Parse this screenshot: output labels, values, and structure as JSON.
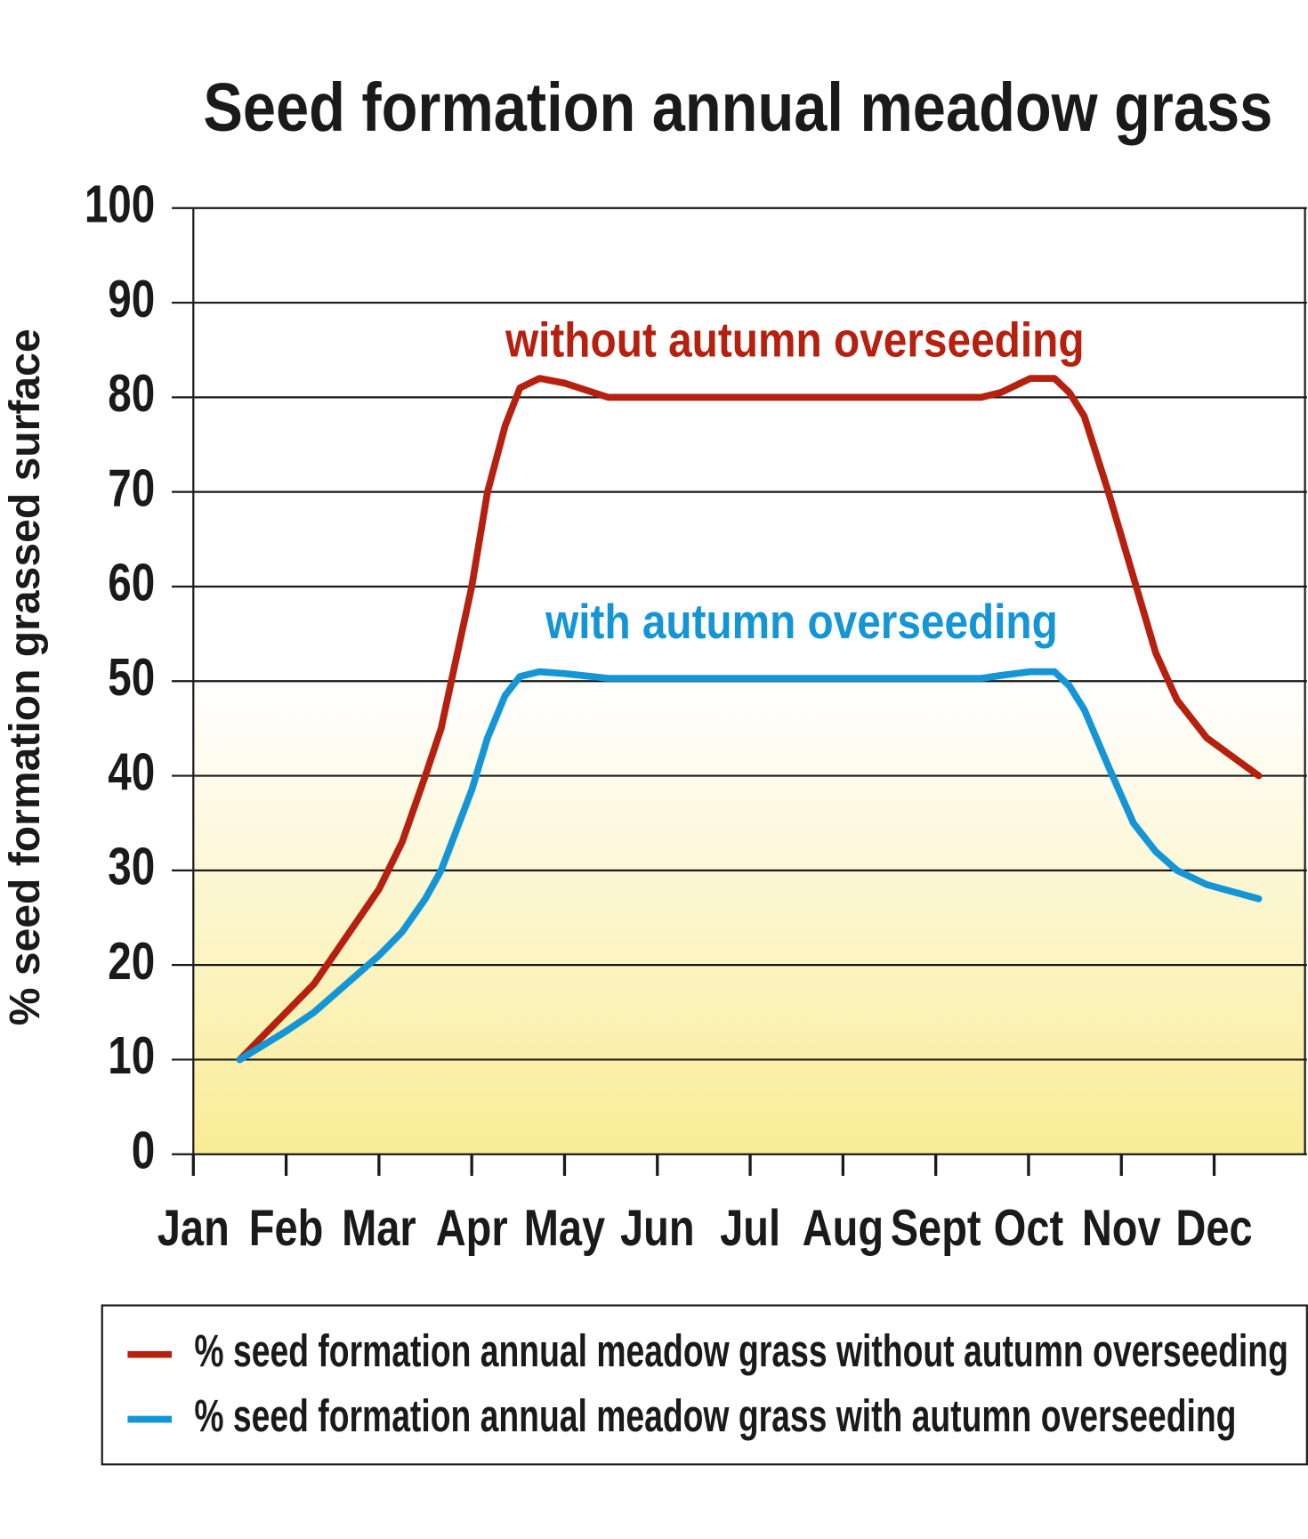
{
  "chart_data": {
    "type": "line",
    "title": "Seed formation annual meadow grass",
    "y_label": "% seed formation grassed surface",
    "annotations": [
      {
        "text": "without autumn overseeding",
        "color": "#b5200f"
      },
      {
        "text": "with autumn overseeding",
        "color": "#1496d6"
      }
    ],
    "xlim": [
      0,
      12
    ],
    "xticks": [
      {
        "value": 0,
        "label": "Jan"
      },
      {
        "value": 1,
        "label": "Feb"
      },
      {
        "value": 2,
        "label": "Mar"
      },
      {
        "value": 3,
        "label": "Apr"
      },
      {
        "value": 4,
        "label": "May"
      },
      {
        "value": 5,
        "label": "Jun"
      },
      {
        "value": 6,
        "label": "Jul"
      },
      {
        "value": 7,
        "label": "Aug"
      },
      {
        "value": 8,
        "label": "Sept"
      },
      {
        "value": 9,
        "label": "Oct"
      },
      {
        "value": 10,
        "label": "Nov"
      },
      {
        "value": 11,
        "label": "Dec"
      }
    ],
    "ylim": [
      0,
      100
    ],
    "yticks": [
      0,
      10,
      20,
      30,
      40,
      50,
      60,
      70,
      80,
      90,
      100
    ],
    "grid": true,
    "x": [
      0.5,
      1.0,
      1.3,
      2.0,
      2.25,
      2.5,
      2.67,
      3.0,
      3.17,
      3.36,
      3.52,
      3.73,
      4.0,
      4.47,
      8.49,
      8.7,
      9.02,
      9.28,
      9.44,
      9.6,
      9.86,
      10.13,
      10.37,
      10.6,
      10.92,
      11.48
    ],
    "series": [
      {
        "name": "% seed formation annual meadow grass without autumn overseeding",
        "color": "#b5200f",
        "values": [
          10,
          15,
          18,
          28,
          33,
          40,
          45,
          60,
          70,
          77,
          81,
          82,
          81.5,
          80,
          80,
          80.5,
          82,
          82,
          80.5,
          78,
          70,
          61,
          53,
          48,
          44,
          40
        ]
      },
      {
        "name": "% seed formation annual meadow grass with autumn overseeding",
        "color": "#1496d6",
        "values": [
          10,
          13,
          15,
          21,
          23.5,
          27,
          30,
          38.5,
          44,
          48.5,
          50.5,
          51,
          50.8,
          50.3,
          50.3,
          50.6,
          51,
          51,
          49.5,
          47,
          41,
          35,
          32,
          30,
          28.5,
          27
        ]
      }
    ]
  }
}
